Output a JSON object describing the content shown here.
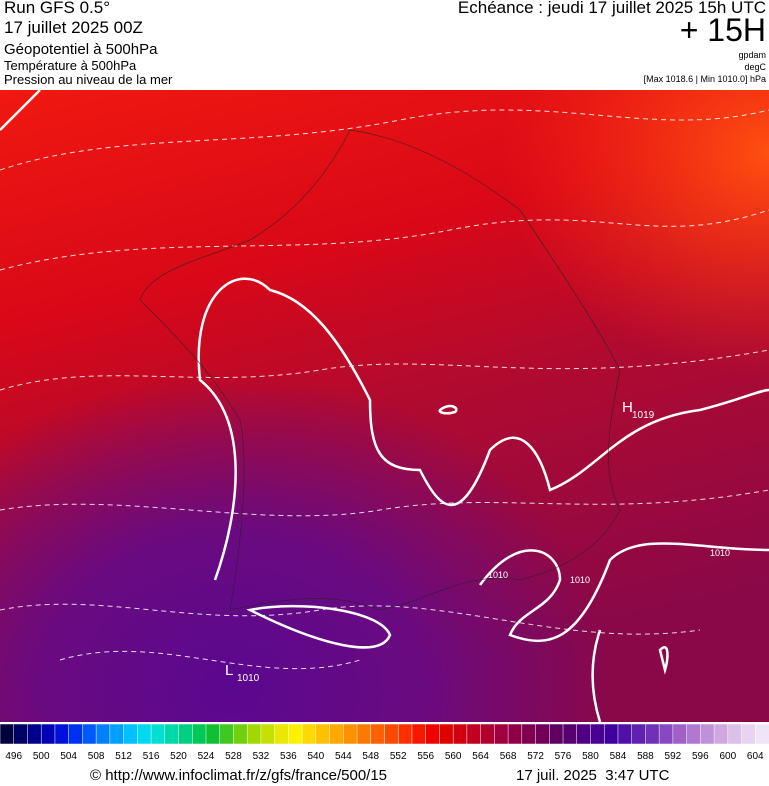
{
  "header": {
    "run": "Run GFS 0.5°",
    "run_date": "17 juillet 2025 00Z",
    "field_main": "Géopotentiel à 500hPa",
    "field_temp": "Température à 500hPa",
    "field_pressure": "Pression au niveau de la mer",
    "valid_time": "Echéance : jeudi 17 juillet 2025 15h UTC",
    "lead": "+ 15H",
    "unit_geo": "gpdam",
    "unit_temp": "degC",
    "pressure_range": "[Max 1018.6 | Min 1010.0] hPa"
  },
  "map": {
    "labels": [
      {
        "text": "H",
        "sub": "1019"
      },
      {
        "text": "L",
        "sub": "1010"
      }
    ],
    "contours": [
      "1010",
      "1010",
      "1010"
    ]
  },
  "colorbar": {
    "labels": [
      496,
      500,
      504,
      508,
      512,
      516,
      520,
      524,
      528,
      532,
      536,
      540,
      544,
      548,
      552,
      556,
      560,
      564,
      568,
      572,
      576,
      580,
      584,
      588,
      592,
      596,
      600,
      604
    ],
    "colors": [
      "#00003c",
      "#000064",
      "#00008c",
      "#0000b4",
      "#0010dc",
      "#0030f0",
      "#0058ff",
      "#0080ff",
      "#00a0ff",
      "#00c0ff",
      "#00d8f0",
      "#00e0d0",
      "#00d8a8",
      "#00d080",
      "#00c858",
      "#10c030",
      "#40c820",
      "#70d010",
      "#a0d800",
      "#c8e000",
      "#e8e800",
      "#fff000",
      "#ffd800",
      "#ffc000",
      "#ffa800",
      "#ff9000",
      "#ff7800",
      "#ff6000",
      "#ff4800",
      "#ff3000",
      "#f81800",
      "#f00000",
      "#e00000",
      "#d00010",
      "#c00020",
      "#b00030",
      "#a00040",
      "#900048",
      "#800050",
      "#700058",
      "#600060",
      "#580070",
      "#500080",
      "#480090",
      "#4000a0",
      "#5010a8",
      "#6020b0",
      "#7030b8",
      "#8848c0",
      "#a060c8",
      "#b078d0",
      "#c090d8",
      "#d0a8e0",
      "#dcc0e8",
      "#e8d4f0",
      "#f0e4f8"
    ]
  },
  "footer": {
    "source": "© http://www.infoclimat.fr/z/gfs/france/500/15",
    "generated": "17 juil. 2025  3:47 UTC"
  }
}
